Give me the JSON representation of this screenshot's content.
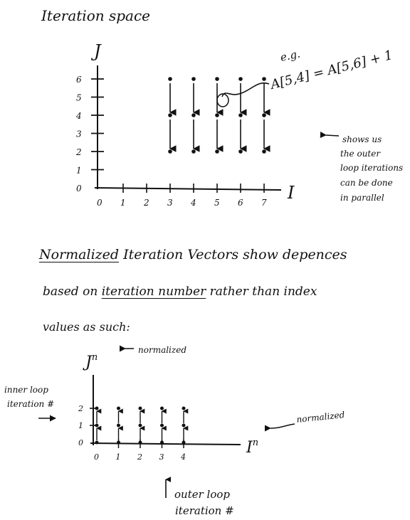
{
  "page_title": "Iteration space",
  "top_diagram": {
    "y_axis_label": "J",
    "x_axis_label": "I",
    "y_ticks": [
      "0",
      "1",
      "2",
      "3",
      "4",
      "5",
      "6"
    ],
    "x_ticks": [
      "0",
      "1",
      "2",
      "3",
      "4",
      "5",
      "6",
      "7"
    ],
    "example_label": "e.g.",
    "example_eq": "A[5,4] = A[5,6] + 1",
    "side_note": [
      "shows us",
      "the outer",
      "loop iterations",
      "can be done",
      "in parallel"
    ],
    "columns": [
      {
        "i": 3,
        "j": [
          6,
          4,
          2
        ]
      },
      {
        "i": 4,
        "j": [
          6,
          4,
          2
        ]
      },
      {
        "i": 5,
        "j": [
          6,
          4,
          2
        ]
      },
      {
        "i": 6,
        "j": [
          6,
          4,
          2
        ]
      },
      {
        "i": 7,
        "j": [
          6,
          4,
          2
        ]
      }
    ]
  },
  "paragraph": {
    "line1_a": "Normalized",
    "line1_b": "Iteration Vectors  show depences",
    "line2_a": "based on",
    "line2_b": "iteration number",
    "line2_c": "rather than index",
    "line3": "values as such:"
  },
  "bottom_diagram": {
    "y_axis_label": "J",
    "y_axis_sup": "n",
    "x_axis_label": "I",
    "x_axis_sup": "n",
    "y_note": "normalized",
    "x_note": "normalized",
    "left_note": [
      "inner loop",
      "iteration #"
    ],
    "bottom_note": [
      "outer loop",
      "iteration #"
    ],
    "y_ticks": [
      "0",
      "1",
      "2"
    ],
    "x_ticks": [
      "0",
      "1",
      "2",
      "3",
      "4"
    ],
    "columns": [
      {
        "i": 0,
        "j": [
          0,
          1,
          2
        ]
      },
      {
        "i": 1,
        "j": [
          0,
          1,
          2
        ]
      },
      {
        "i": 2,
        "j": [
          0,
          1,
          2
        ]
      },
      {
        "i": 3,
        "j": [
          0,
          1,
          2
        ]
      },
      {
        "i": 4,
        "j": [
          0,
          1,
          2
        ]
      }
    ]
  }
}
